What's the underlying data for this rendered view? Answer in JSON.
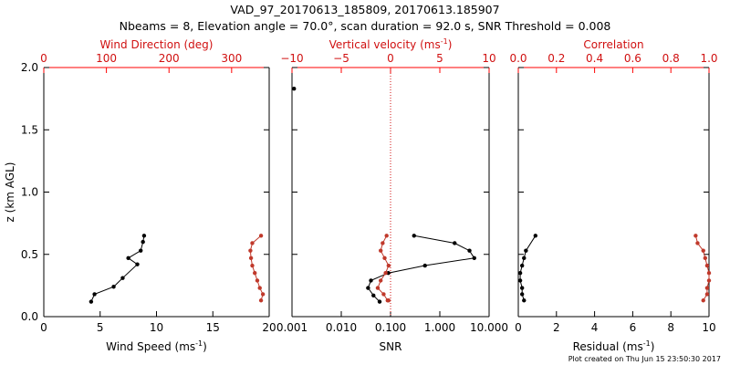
{
  "header": {
    "title": "VAD_97_20170613_185809, 20170613.185907",
    "subtitle": "Nbeams = 8, Elevation angle = 70.0°, scan duration = 92.0 s, SNR Threshold = 0.008"
  },
  "footer": {
    "created": "Plot created on Thu Jun 15 23:50:30 2017"
  },
  "colors": {
    "primary": "#000000",
    "secondary": "#c0392b",
    "axis_red": "#ff0000",
    "zero_line": "#d01010"
  },
  "chart_data": [
    {
      "type": "line",
      "panel": "wind",
      "ylabel": "z (km AGL)",
      "ylim": [
        0.0,
        2.0
      ],
      "yticks": [
        0.0,
        0.5,
        1.0,
        1.5,
        2.0
      ],
      "ytick_labels": [
        "0.0",
        "0.5",
        "1.0",
        "1.5",
        "2.0"
      ],
      "bottom_axis": {
        "label": "Wind Speed (ms",
        "label_sup": "-1",
        "label_end": ")",
        "range": [
          0,
          20
        ],
        "ticks": [
          0,
          5,
          10,
          15,
          20
        ],
        "tick_labels": [
          "0",
          "5",
          "10",
          "15",
          "20"
        ]
      },
      "top_axis": {
        "label": "Wind Direction (deg)",
        "range": [
          0,
          360
        ],
        "ticks": [
          0,
          100,
          200,
          300
        ],
        "tick_labels": [
          "0",
          "100",
          "200",
          "300"
        ]
      },
      "series": [
        {
          "axis": "bottom",
          "x": [
            4.2,
            4.5,
            6.2,
            7.0,
            8.3,
            7.5,
            8.6,
            8.8,
            8.9
          ],
          "y": [
            0.12,
            0.18,
            0.24,
            0.31,
            0.42,
            0.47,
            0.53,
            0.6,
            0.65
          ]
        },
        {
          "axis": "top",
          "x": [
            347,
            350,
            345,
            341,
            337,
            333,
            331,
            330,
            333,
            347
          ],
          "y": [
            0.13,
            0.18,
            0.23,
            0.29,
            0.35,
            0.41,
            0.47,
            0.53,
            0.59,
            0.65
          ]
        }
      ]
    },
    {
      "type": "line",
      "panel": "vertical_velocity",
      "bottom_axis": {
        "label": "SNR",
        "scale": "log",
        "range": [
          0.001,
          10
        ],
        "ticks": [
          0.001,
          0.01,
          0.1,
          1,
          10
        ],
        "tick_labels": [
          "0.001",
          "0.010",
          "0.100",
          "1.000",
          "10.000"
        ]
      },
      "top_axis": {
        "label": "Vertical velocity (ms",
        "label_sup": "-1",
        "label_end": ")",
        "range": [
          -10,
          10
        ],
        "ticks": [
          -10,
          -5,
          0,
          5,
          10
        ],
        "tick_labels": [
          "−10",
          "−5",
          "0",
          "5",
          "10"
        ]
      },
      "series": [
        {
          "axis": "bottom",
          "x": [
            0.0011,
            0.06,
            0.045,
            0.035,
            0.04,
            0.09,
            0.5,
            5.0,
            4.0,
            2.0,
            0.3
          ],
          "y": [
            1.83,
            0.12,
            0.17,
            0.23,
            0.29,
            0.35,
            0.41,
            0.47,
            0.53,
            0.59,
            0.65
          ]
        },
        {
          "axis": "top",
          "x": [
            -0.3,
            -0.7,
            -1.3,
            -1.0,
            -0.5,
            -0.2,
            -0.6,
            -1.0,
            -0.8,
            -0.4,
            -0.2
          ],
          "y": [
            0.13,
            0.18,
            0.23,
            0.29,
            0.35,
            0.41,
            0.47,
            0.53,
            0.59,
            0.65,
            0.13
          ]
        }
      ]
    },
    {
      "type": "line",
      "panel": "residual",
      "bottom_axis": {
        "label": "Residual (ms",
        "label_sup": "-1",
        "label_end": ")",
        "range": [
          0,
          10
        ],
        "ticks": [
          0,
          2,
          4,
          6,
          8,
          10
        ],
        "tick_labels": [
          "0",
          "2",
          "4",
          "6",
          "8",
          "10"
        ]
      },
      "top_axis": {
        "label": "Correlation",
        "range": [
          0.0,
          1.0
        ],
        "ticks": [
          0.0,
          0.2,
          0.4,
          0.6,
          0.8,
          1.0
        ],
        "tick_labels": [
          "0.0",
          "0.2",
          "0.4",
          "0.6",
          "0.8",
          "1.0"
        ]
      },
      "series": [
        {
          "axis": "bottom",
          "x": [
            0.3,
            0.2,
            0.2,
            0.1,
            0.1,
            0.2,
            0.3,
            0.4,
            0.9
          ],
          "y": [
            0.13,
            0.18,
            0.23,
            0.29,
            0.35,
            0.41,
            0.47,
            0.53,
            0.65
          ]
        },
        {
          "axis": "top",
          "x": [
            0.97,
            0.99,
            0.99,
            1.0,
            1.0,
            0.99,
            0.98,
            0.97,
            0.94,
            0.93
          ],
          "y": [
            0.13,
            0.18,
            0.23,
            0.29,
            0.35,
            0.41,
            0.47,
            0.53,
            0.59,
            0.65
          ]
        }
      ]
    }
  ]
}
